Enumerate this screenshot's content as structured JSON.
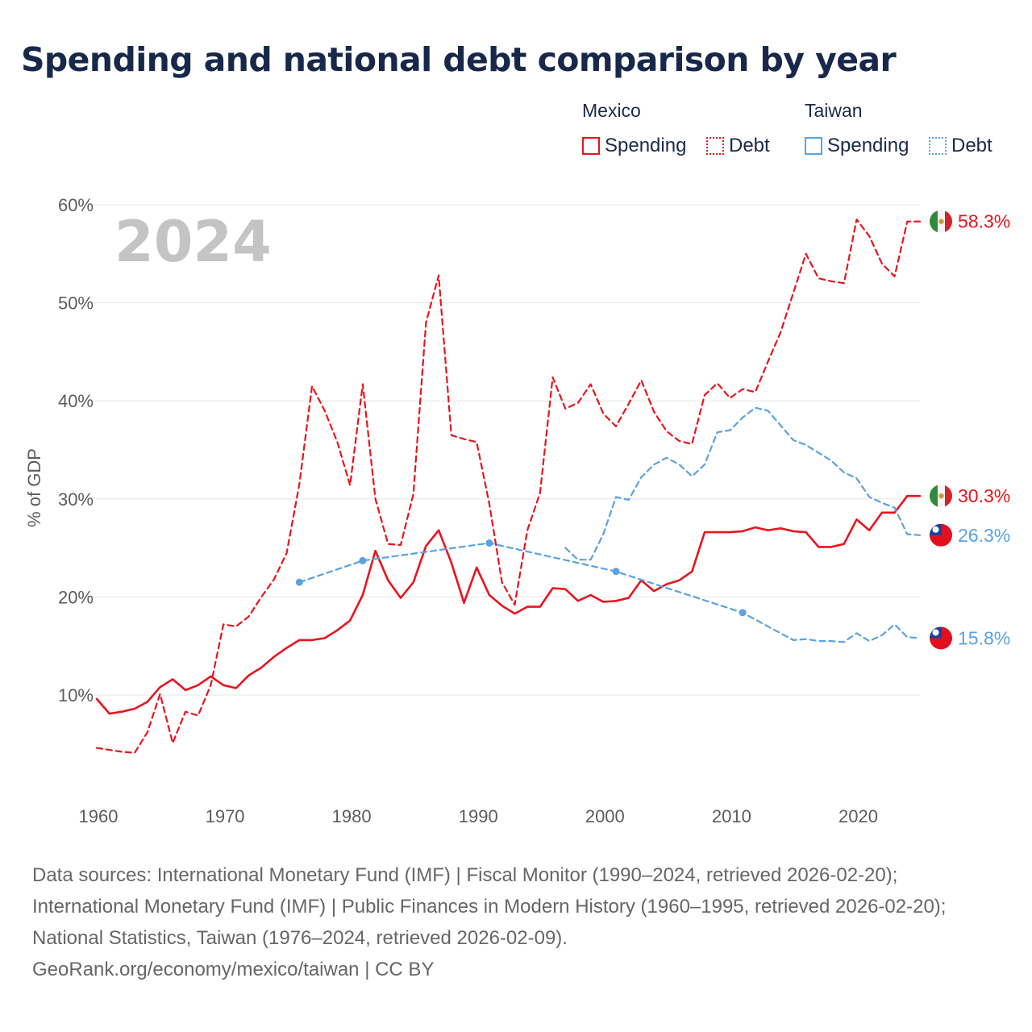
{
  "title": "Spending and national debt comparison by year",
  "legend": {
    "groups": [
      {
        "country": "Mexico",
        "color": "#e8141e",
        "items": [
          {
            "label": "Spending",
            "style": "solid"
          },
          {
            "label": "Debt",
            "style": "dotted"
          }
        ]
      },
      {
        "country": "Taiwan",
        "color": "#5aa2e2",
        "items": [
          {
            "label": "Spending",
            "style": "solid"
          },
          {
            "label": "Debt",
            "style": "dotted"
          }
        ]
      }
    ]
  },
  "sources": {
    "text": "Data sources: International Monetary Fund (IMF) | Fiscal Monitor (1990–2024, retrieved 2026-02-20); International Monetary Fund (IMF) | Public Finances in Modern History (1960–1995, retrieved 2026-02-20); National Statistics, Taiwan (1976–2024, retrieved 2026-02-09).",
    "attribution": "GeoRank.org/economy/mexico/taiwan | CC BY"
  },
  "chart_data": {
    "type": "line",
    "title": "Spending and national debt comparison by year",
    "year_label": "2024",
    "ylabel": "% of GDP",
    "xlabel": "",
    "xlim": [
      1960,
      2025
    ],
    "ylim": [
      0,
      60
    ],
    "grid": true,
    "x_ticks": [
      1960,
      1970,
      1980,
      1990,
      2000,
      2010,
      2020
    ],
    "y_ticks": [
      10,
      20,
      30,
      40,
      50,
      60
    ],
    "y_tick_labels": [
      "10%",
      "20%",
      "30%",
      "40%",
      "50%",
      "60%"
    ],
    "series": [
      {
        "name": "Mexico Debt",
        "country": "Mexico",
        "metric": "Debt",
        "color": "#e8141e",
        "dash": true,
        "flag": "mexico",
        "end_label": "58.3%",
        "points": [
          [
            1960,
            4.6
          ],
          [
            1961,
            4.4
          ],
          [
            1962,
            4.2
          ],
          [
            1963,
            4.1
          ],
          [
            1964,
            6.2
          ],
          [
            1965,
            10.1
          ],
          [
            1966,
            5.1
          ],
          [
            1967,
            8.3
          ],
          [
            1968,
            7.9
          ],
          [
            1969,
            11.0
          ],
          [
            1970,
            17.2
          ],
          [
            1971,
            17.0
          ],
          [
            1972,
            18.0
          ],
          [
            1973,
            20.0
          ],
          [
            1974,
            21.8
          ],
          [
            1975,
            24.5
          ],
          [
            1976,
            31.5
          ],
          [
            1977,
            41.5
          ],
          [
            1978,
            39.0
          ],
          [
            1979,
            35.8
          ],
          [
            1980,
            31.4
          ],
          [
            1981,
            41.7
          ],
          [
            1982,
            30.0
          ],
          [
            1983,
            25.4
          ],
          [
            1984,
            25.3
          ],
          [
            1985,
            30.5
          ],
          [
            1986,
            48.0
          ],
          [
            1987,
            52.8
          ],
          [
            1988,
            36.5
          ],
          [
            1989,
            36.1
          ],
          [
            1990,
            35.8
          ],
          [
            1991,
            29.5
          ],
          [
            1992,
            21.5
          ],
          [
            1993,
            19.2
          ],
          [
            1994,
            26.8
          ],
          [
            1995,
            30.6
          ],
          [
            1996,
            42.4
          ],
          [
            1997,
            39.2
          ],
          [
            1998,
            39.8
          ],
          [
            1999,
            41.7
          ],
          [
            2000,
            38.7
          ],
          [
            2001,
            37.4
          ],
          [
            2002,
            39.7
          ],
          [
            2003,
            42.1
          ],
          [
            2004,
            38.9
          ],
          [
            2005,
            36.9
          ],
          [
            2006,
            35.9
          ],
          [
            2007,
            35.6
          ],
          [
            2008,
            40.6
          ],
          [
            2009,
            41.8
          ],
          [
            2010,
            40.3
          ],
          [
            2011,
            41.2
          ],
          [
            2012,
            40.9
          ],
          [
            2013,
            44.0
          ],
          [
            2014,
            47.0
          ],
          [
            2015,
            51.0
          ],
          [
            2016,
            55.0
          ],
          [
            2017,
            52.5
          ],
          [
            2018,
            52.2
          ],
          [
            2019,
            52.0
          ],
          [
            2020,
            58.5
          ],
          [
            2021,
            56.8
          ],
          [
            2022,
            54.0
          ],
          [
            2023,
            52.7
          ],
          [
            2024,
            58.3
          ],
          [
            2025,
            58.3
          ]
        ]
      },
      {
        "name": "Mexico Spending",
        "country": "Mexico",
        "metric": "Spending",
        "color": "#e8141e",
        "dash": false,
        "flag": "mexico",
        "end_label": "30.3%",
        "points": [
          [
            1960,
            9.6
          ],
          [
            1961,
            8.1
          ],
          [
            1962,
            8.3
          ],
          [
            1963,
            8.6
          ],
          [
            1964,
            9.3
          ],
          [
            1965,
            10.8
          ],
          [
            1966,
            11.6
          ],
          [
            1967,
            10.5
          ],
          [
            1968,
            11.0
          ],
          [
            1969,
            11.9
          ],
          [
            1970,
            11.0
          ],
          [
            1971,
            10.7
          ],
          [
            1972,
            12.0
          ],
          [
            1973,
            12.8
          ],
          [
            1974,
            13.9
          ],
          [
            1975,
            14.8
          ],
          [
            1976,
            15.6
          ],
          [
            1977,
            15.6
          ],
          [
            1978,
            15.8
          ],
          [
            1979,
            16.6
          ],
          [
            1980,
            17.6
          ],
          [
            1981,
            20.2
          ],
          [
            1982,
            24.7
          ],
          [
            1983,
            21.7
          ],
          [
            1984,
            19.9
          ],
          [
            1985,
            21.5
          ],
          [
            1986,
            25.2
          ],
          [
            1987,
            26.8
          ],
          [
            1988,
            23.5
          ],
          [
            1989,
            19.4
          ],
          [
            1990,
            23.0
          ],
          [
            1991,
            20.2
          ],
          [
            1992,
            19.1
          ],
          [
            1993,
            18.3
          ],
          [
            1994,
            19.0
          ],
          [
            1995,
            19.0
          ],
          [
            1996,
            20.9
          ],
          [
            1997,
            20.8
          ],
          [
            1998,
            19.6
          ],
          [
            1999,
            20.2
          ],
          [
            2000,
            19.5
          ],
          [
            2001,
            19.6
          ],
          [
            2002,
            19.9
          ],
          [
            2003,
            21.7
          ],
          [
            2004,
            20.6
          ],
          [
            2005,
            21.3
          ],
          [
            2006,
            21.7
          ],
          [
            2007,
            22.6
          ],
          [
            2008,
            26.6
          ],
          [
            2009,
            26.6
          ],
          [
            2010,
            26.6
          ],
          [
            2011,
            26.7
          ],
          [
            2012,
            27.1
          ],
          [
            2013,
            26.8
          ],
          [
            2014,
            27.0
          ],
          [
            2015,
            26.7
          ],
          [
            2016,
            26.6
          ],
          [
            2017,
            25.1
          ],
          [
            2018,
            25.1
          ],
          [
            2019,
            25.4
          ],
          [
            2020,
            27.9
          ],
          [
            2021,
            26.8
          ],
          [
            2022,
            28.6
          ],
          [
            2023,
            28.6
          ],
          [
            2024,
            30.3
          ],
          [
            2025,
            30.3
          ]
        ]
      },
      {
        "name": "Taiwan Spending",
        "country": "Taiwan",
        "metric": "Spending",
        "color": "#5aa2e2",
        "dash": true,
        "flag": "taiwan",
        "end_label": "26.3%",
        "points": [
          [
            1997,
            25.0
          ],
          [
            1998,
            23.8
          ],
          [
            1999,
            23.8
          ],
          [
            2000,
            26.4
          ],
          [
            2001,
            30.2
          ],
          [
            2002,
            29.9
          ],
          [
            2003,
            32.2
          ],
          [
            2004,
            33.5
          ],
          [
            2005,
            34.2
          ],
          [
            2006,
            33.5
          ],
          [
            2007,
            32.3
          ],
          [
            2008,
            33.5
          ],
          [
            2009,
            36.8
          ],
          [
            2010,
            37.0
          ],
          [
            2011,
            38.3
          ],
          [
            2012,
            39.3
          ],
          [
            2013,
            39.0
          ],
          [
            2014,
            37.5
          ],
          [
            2015,
            36.0
          ],
          [
            2016,
            35.5
          ],
          [
            2017,
            34.7
          ],
          [
            2018,
            33.9
          ],
          [
            2019,
            32.7
          ],
          [
            2020,
            32.1
          ],
          [
            2021,
            30.2
          ],
          [
            2022,
            29.6
          ],
          [
            2023,
            29.1
          ],
          [
            2024,
            26.4
          ],
          [
            2025,
            26.3
          ]
        ]
      },
      {
        "name": "Taiwan Debt",
        "country": "Taiwan",
        "metric": "Debt",
        "color": "#5aa2e2",
        "dash": true,
        "flag": "taiwan",
        "end_label": "15.8%",
        "points": [
          [
            1976,
            21.5
          ],
          [
            1981,
            23.7
          ],
          [
            1991,
            25.5
          ],
          [
            2001,
            22.6
          ],
          [
            2011,
            18.4
          ],
          [
            2015,
            15.6
          ],
          [
            2016,
            15.7
          ],
          [
            2017,
            15.5
          ],
          [
            2018,
            15.5
          ],
          [
            2019,
            15.4
          ],
          [
            2020,
            16.3
          ],
          [
            2021,
            15.5
          ],
          [
            2022,
            16.1
          ],
          [
            2023,
            17.2
          ],
          [
            2024,
            15.9
          ],
          [
            2025,
            15.8
          ]
        ],
        "markers": [
          1976,
          1981,
          1991,
          2001,
          2011
        ]
      }
    ]
  }
}
